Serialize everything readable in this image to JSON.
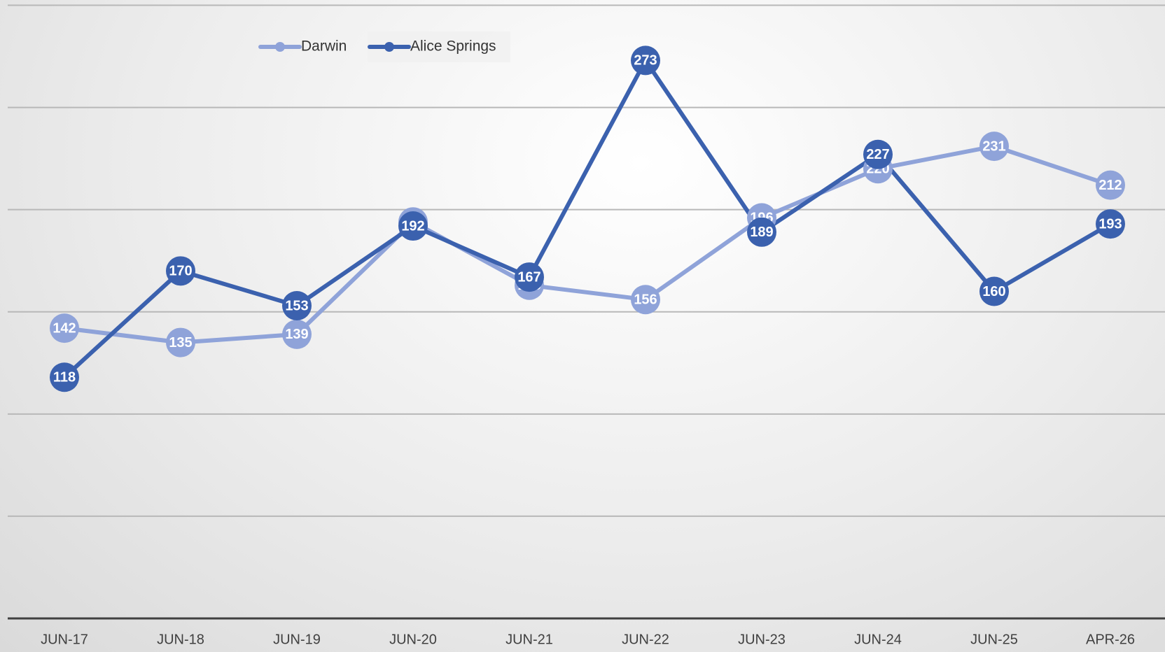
{
  "chart_data": {
    "type": "line",
    "categories": [
      "JUN-17",
      "JUN-18",
      "JUN-19",
      "JUN-20",
      "JUN-21",
      "JUN-22",
      "JUN-23",
      "JUN-24",
      "JUN-25",
      "APR-26"
    ],
    "series": [
      {
        "name": "Darwin",
        "color": "#8fa3d9",
        "values": [
          142,
          135,
          139,
          194,
          163,
          156,
          196,
          220,
          231,
          212
        ]
      },
      {
        "name": "Alice Springs",
        "color": "#3b61ae",
        "values": [
          118,
          170,
          153,
          192,
          167,
          273,
          189,
          227,
          160,
          193
        ]
      }
    ],
    "ylim": [
      0,
      300
    ],
    "yticks": [
      0,
      50,
      100,
      150,
      200,
      250,
      300
    ],
    "grid": true,
    "legend": "top"
  }
}
